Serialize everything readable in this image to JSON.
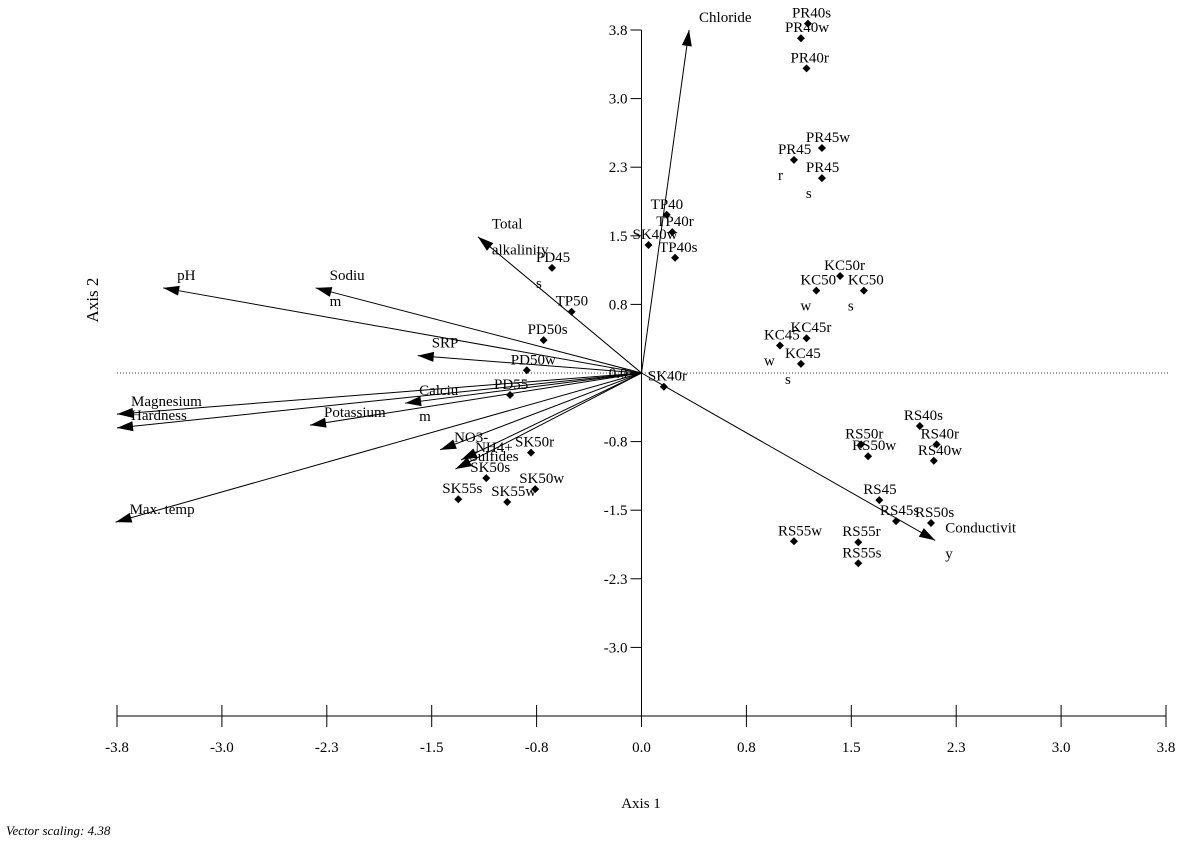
{
  "chart_data": {
    "type": "scatter",
    "xlabel": "Axis 1",
    "ylabel": "Axis 2",
    "note": "Vector scaling: 4.38",
    "xlim": [
      -3.75,
      3.75
    ],
    "ylim": [
      -3.75,
      3.75
    ],
    "xticks": [
      {
        "value": -3.75,
        "label": "-3.8"
      },
      {
        "value": -3,
        "label": "-3.0"
      },
      {
        "value": -2.25,
        "label": "-2.3"
      },
      -1.5,
      {
        "value": -0.75,
        "label": "-0.8"
      },
      {
        "value": 0,
        "label": "0.0"
      },
      {
        "value": 0.75,
        "label": "0.8"
      },
      1.5,
      {
        "value": 2.25,
        "label": "2.3"
      },
      {
        "value": 3,
        "label": "3.0"
      },
      {
        "value": 3.75,
        "label": "3.8"
      }
    ],
    "yticks": [
      {
        "value": 3.75,
        "label": "3.8"
      },
      {
        "value": 3,
        "label": "3.0"
      },
      {
        "value": 2.25,
        "label": "2.3"
      },
      1.5,
      {
        "value": 0.75,
        "label": "0.8"
      },
      {
        "value": 0,
        "label": "0.0"
      },
      {
        "value": -0.75,
        "label": "-0.8"
      },
      -1.5,
      {
        "value": -2.25,
        "label": "-2.3"
      },
      {
        "value": -3,
        "label": "-3.0"
      }
    ],
    "color": "#000000",
    "points": {
      "labels": [
        "PR40s",
        "PR40w",
        "PR40r",
        "PR45w",
        [
          "PR45",
          "r"
        ],
        [
          "PR45",
          "s"
        ],
        "TP40",
        "TP40r",
        "TP40s",
        "SK40w",
        [
          "PD45",
          "s"
        ],
        "KC50r",
        [
          "KC50",
          "w"
        ],
        [
          "KC50",
          "s"
        ],
        "KC45r",
        [
          "KC45",
          "w"
        ],
        [
          "KC45",
          "s"
        ],
        "TP50",
        "PD50s",
        "PD50w",
        "PD55",
        "SK40r",
        "RS40s",
        "RS40r",
        "RS40w",
        "RS50r",
        "RS50w",
        "RS45",
        "RS45s",
        "RS50s",
        "RS55w",
        "RS55r",
        "RS55s",
        "SK50r",
        "SK50s",
        "SK50w",
        "SK55s",
        "SK55w"
      ],
      "x": [
        1.19,
        1.14,
        1.18,
        1.29,
        1.09,
        1.29,
        0.18,
        0.22,
        0.24,
        0.05,
        -0.64,
        1.42,
        1.25,
        1.59,
        1.18,
        0.99,
        1.14,
        -0.5,
        -0.7,
        -0.82,
        -0.94,
        0.16,
        1.99,
        2.11,
        2.09,
        1.57,
        1.62,
        1.7,
        1.82,
        2.07,
        1.09,
        1.55,
        1.55,
        -0.79,
        -1.11,
        -0.76,
        -1.31,
        -0.96
      ],
      "y": [
        3.82,
        3.66,
        3.33,
        2.46,
        2.33,
        2.13,
        1.73,
        1.54,
        1.26,
        1.4,
        1.15,
        1.06,
        0.9,
        0.9,
        0.38,
        0.3,
        0.1,
        0.67,
        0.36,
        0.03,
        -0.24,
        -0.15,
        -0.58,
        -0.78,
        -0.96,
        -0.78,
        -0.91,
        -1.39,
        -1.62,
        -1.64,
        -1.84,
        -1.85,
        -2.08,
        -0.87,
        -1.15,
        -1.27,
        -1.38,
        -1.41
      ]
    },
    "vectors": {
      "labels": [
        "Chloride",
        [
          "Total",
          "alkalinity"
        ],
        "pH",
        [
          "Sodiu",
          "m"
        ],
        "SRP",
        "Magnesium",
        "Hardness",
        "Potassium",
        [
          "Calciu",
          "m"
        ],
        "NO3-",
        "NH4+",
        "Sulfides",
        "Max. temp",
        [
          "Conductivit",
          "y"
        ]
      ],
      "x": [
        0.34,
        -1.17,
        -3.42,
        -2.33,
        -1.6,
        -3.75,
        -3.75,
        -2.37,
        -1.69,
        -1.44,
        -1.29,
        -1.33,
        -3.76,
        2.1
      ],
      "y": [
        3.75,
        1.49,
        0.93,
        0.93,
        0.19,
        -0.45,
        -0.6,
        -0.57,
        -0.33,
        -0.84,
        -0.95,
        -1.05,
        -1.63,
        -1.83
      ]
    }
  }
}
